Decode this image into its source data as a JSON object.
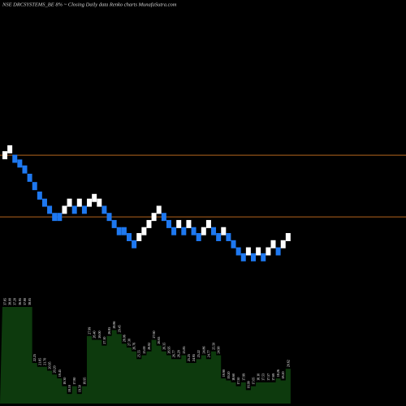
{
  "chart_data": {
    "type": "renko",
    "title": "NSE DRCSYSTEMS_BE 8% ~ Closing Daily data  Renko  charts MunafaSutra.com",
    "colors": {
      "background": "#000000",
      "up_brick": "#ffffff",
      "down_brick": "#1e78f0",
      "level_line": "#b4641e",
      "volume_fill": "#0d3a0d"
    },
    "price_levels": [
      33.5,
      28.3
    ],
    "ylim": [
      24,
      37
    ],
    "brick_size": 0.8,
    "bricks": [
      {
        "dir": "up",
        "close": 33.5
      },
      {
        "dir": "up",
        "close": 34.0
      },
      {
        "dir": "down",
        "close": 33.2
      },
      {
        "dir": "down",
        "close": 32.8
      },
      {
        "dir": "down",
        "close": 32.3
      },
      {
        "dir": "down",
        "close": 31.6
      },
      {
        "dir": "down",
        "close": 30.9
      },
      {
        "dir": "down",
        "close": 30.1
      },
      {
        "dir": "down",
        "close": 29.5
      },
      {
        "dir": "down",
        "close": 28.9
      },
      {
        "dir": "down",
        "close": 28.3
      },
      {
        "dir": "down",
        "close": 28.3
      },
      {
        "dir": "up",
        "close": 28.9
      },
      {
        "dir": "up",
        "close": 29.5
      },
      {
        "dir": "down",
        "close": 28.9
      },
      {
        "dir": "up",
        "close": 29.5
      },
      {
        "dir": "down",
        "close": 28.9
      },
      {
        "dir": "up",
        "close": 29.5
      },
      {
        "dir": "up",
        "close": 29.9
      },
      {
        "dir": "up",
        "close": 29.5
      },
      {
        "dir": "down",
        "close": 28.9
      },
      {
        "dir": "down",
        "close": 28.3
      },
      {
        "dir": "down",
        "close": 27.7
      },
      {
        "dir": "down",
        "close": 27.1
      },
      {
        "dir": "down",
        "close": 27.1
      },
      {
        "dir": "down",
        "close": 26.6
      },
      {
        "dir": "down",
        "close": 26.0
      },
      {
        "dir": "up",
        "close": 26.6
      },
      {
        "dir": "up",
        "close": 27.1
      },
      {
        "dir": "up",
        "close": 27.7
      },
      {
        "dir": "up",
        "close": 28.3
      },
      {
        "dir": "up",
        "close": 28.9
      },
      {
        "dir": "down",
        "close": 28.3
      },
      {
        "dir": "down",
        "close": 27.7
      },
      {
        "dir": "down",
        "close": 27.1
      },
      {
        "dir": "up",
        "close": 27.7
      },
      {
        "dir": "down",
        "close": 27.1
      },
      {
        "dir": "up",
        "close": 27.7
      },
      {
        "dir": "down",
        "close": 27.1
      },
      {
        "dir": "down",
        "close": 26.6
      },
      {
        "dir": "up",
        "close": 27.1
      },
      {
        "dir": "up",
        "close": 27.7
      },
      {
        "dir": "down",
        "close": 27.1
      },
      {
        "dir": "down",
        "close": 26.6
      },
      {
        "dir": "up",
        "close": 27.1
      },
      {
        "dir": "down",
        "close": 26.6
      },
      {
        "dir": "down",
        "close": 26.0
      },
      {
        "dir": "down",
        "close": 25.4
      },
      {
        "dir": "down",
        "close": 24.9
      },
      {
        "dir": "up",
        "close": 25.4
      },
      {
        "dir": "down",
        "close": 24.9
      },
      {
        "dir": "up",
        "close": 25.4
      },
      {
        "dir": "down",
        "close": 24.9
      },
      {
        "dir": "up",
        "close": 25.4
      },
      {
        "dir": "up",
        "close": 26.0
      },
      {
        "dir": "down",
        "close": 25.4
      },
      {
        "dir": "up",
        "close": 26.0
      },
      {
        "dir": "up",
        "close": 26.6
      }
    ],
    "volume_labels": [
      "37.85",
      "38.00",
      "37.20",
      "36.95",
      "37.80",
      "38.05",
      "22.25",
      "21.85",
      "21.70",
      "20.95",
      "20.20",
      "19.45",
      "18.30",
      "18.10",
      "17.80",
      "19.50",
      "18.95",
      "27.99",
      "26.40",
      "26.00",
      "27.10",
      "26.85",
      "28.86",
      "29.45",
      "28.06",
      "27.30",
      "26.76",
      "25.55",
      "25.00",
      "26.82",
      "27.60",
      "26.65",
      "26.35",
      "26.95",
      "26.77",
      "26.20",
      "25.85",
      "25.25",
      "24.95",
      "25.22",
      "24.86",
      "24.77",
      "25.50",
      "24.90",
      "19.90",
      "19.20",
      "18.60",
      "17.50",
      "17.99",
      "16.99",
      "17.05",
      "18.10",
      "17.53",
      "17.57",
      "17.69",
      "18.26",
      "18.20",
      "20.62"
    ],
    "volume_bars": [
      100,
      100,
      100,
      100,
      100,
      100,
      42,
      38,
      38,
      34,
      30,
      26,
      18,
      10,
      18,
      10,
      18,
      70,
      66,
      66,
      60,
      70,
      76,
      72,
      62,
      58,
      54,
      46,
      50,
      54,
      66,
      60,
      54,
      50,
      46,
      46,
      50,
      42,
      42,
      46,
      50,
      46,
      54,
      50,
      26,
      24,
      22,
      18,
      22,
      14,
      18,
      22,
      22,
      22,
      22,
      26,
      24,
      36
    ]
  }
}
